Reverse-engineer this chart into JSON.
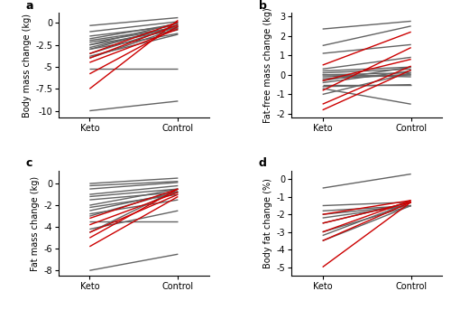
{
  "panel_a": {
    "title": "a",
    "ylabel": "Body mass change (kg)",
    "ylim": [
      -10.8,
      1.2
    ],
    "yticks": [
      0,
      -2.5,
      -5.0,
      -7.5,
      -10.0
    ],
    "lines": [
      {
        "keto": -0.3,
        "control": 0.6,
        "color": "gray"
      },
      {
        "keto": -1.0,
        "control": 0.15,
        "color": "gray"
      },
      {
        "keto": -1.5,
        "control": -0.3,
        "color": "gray"
      },
      {
        "keto": -1.8,
        "control": -0.1,
        "color": "gray"
      },
      {
        "keto": -2.0,
        "control": -0.5,
        "color": "gray"
      },
      {
        "keto": -2.2,
        "control": -0.6,
        "color": "gray"
      },
      {
        "keto": -2.5,
        "control": -0.8,
        "color": "gray"
      },
      {
        "keto": -2.5,
        "control": 0.0,
        "color": "gray"
      },
      {
        "keto": -2.8,
        "control": -0.4,
        "color": "gray"
      },
      {
        "keto": -3.0,
        "control": -0.3,
        "color": "gray"
      },
      {
        "keto": -3.0,
        "control": -1.2,
        "color": "gray"
      },
      {
        "keto": -3.5,
        "control": -0.4,
        "color": "gray"
      },
      {
        "keto": -3.8,
        "control": -1.3,
        "color": "gray"
      },
      {
        "keto": -4.0,
        "control": -0.6,
        "color": "gray"
      },
      {
        "keto": -5.2,
        "control": -5.2,
        "color": "gray"
      },
      {
        "keto": -10.0,
        "control": -8.9,
        "color": "gray"
      },
      {
        "keto": -3.5,
        "control": 0.1,
        "color": "red"
      },
      {
        "keto": -4.0,
        "control": -0.2,
        "color": "red"
      },
      {
        "keto": -4.5,
        "control": -0.7,
        "color": "red"
      },
      {
        "keto": -5.8,
        "control": -0.4,
        "color": "red"
      },
      {
        "keto": -7.5,
        "control": 0.3,
        "color": "red"
      }
    ]
  },
  "panel_b": {
    "title": "b",
    "ylabel": "Fat-free mass change (kg)",
    "ylim": [
      -2.2,
      3.2
    ],
    "yticks": [
      -2,
      -1,
      0,
      1,
      2,
      3
    ],
    "lines": [
      {
        "keto": 2.35,
        "control": 2.75,
        "color": "gray"
      },
      {
        "keto": 1.5,
        "control": 2.5,
        "color": "gray"
      },
      {
        "keto": 1.1,
        "control": 1.55,
        "color": "gray"
      },
      {
        "keto": 0.3,
        "control": 0.9,
        "color": "gray"
      },
      {
        "keto": 0.2,
        "control": 0.4,
        "color": "gray"
      },
      {
        "keto": 0.1,
        "control": 0.3,
        "color": "gray"
      },
      {
        "keto": 0.0,
        "control": 0.1,
        "color": "gray"
      },
      {
        "keto": 0.0,
        "control": -0.1,
        "color": "gray"
      },
      {
        "keto": -0.1,
        "control": 0.0,
        "color": "gray"
      },
      {
        "keto": -0.2,
        "control": 0.0,
        "color": "gray"
      },
      {
        "keto": -0.3,
        "control": 0.4,
        "color": "gray"
      },
      {
        "keto": -0.4,
        "control": 0.2,
        "color": "gray"
      },
      {
        "keto": -0.5,
        "control": -0.5,
        "color": "gray"
      },
      {
        "keto": -0.6,
        "control": -0.5,
        "color": "gray"
      },
      {
        "keto": -0.7,
        "control": -1.5,
        "color": "gray"
      },
      {
        "keto": -1.0,
        "control": 0.1,
        "color": "gray"
      },
      {
        "keto": 0.5,
        "control": 2.2,
        "color": "red"
      },
      {
        "keto": -0.3,
        "control": 0.8,
        "color": "red"
      },
      {
        "keto": -0.8,
        "control": 1.4,
        "color": "red"
      },
      {
        "keto": -1.5,
        "control": 0.45,
        "color": "red"
      },
      {
        "keto": -1.8,
        "control": 0.25,
        "color": "red"
      }
    ]
  },
  "panel_c": {
    "title": "c",
    "ylabel": "Fat mass change (kg)",
    "ylim": [
      -8.5,
      1.2
    ],
    "yticks": [
      0,
      -2,
      -4,
      -6,
      -8
    ],
    "lines": [
      {
        "keto": 0.0,
        "control": 0.5,
        "color": "gray"
      },
      {
        "keto": -0.2,
        "control": 0.2,
        "color": "gray"
      },
      {
        "keto": -0.5,
        "control": 0.1,
        "color": "gray"
      },
      {
        "keto": -1.0,
        "control": -0.2,
        "color": "gray"
      },
      {
        "keto": -1.2,
        "control": -0.5,
        "color": "gray"
      },
      {
        "keto": -1.5,
        "control": -0.8,
        "color": "gray"
      },
      {
        "keto": -2.0,
        "control": -0.5,
        "color": "gray"
      },
      {
        "keto": -2.2,
        "control": -1.0,
        "color": "gray"
      },
      {
        "keto": -2.5,
        "control": -0.8,
        "color": "gray"
      },
      {
        "keto": -2.8,
        "control": -1.5,
        "color": "gray"
      },
      {
        "keto": -3.0,
        "control": -0.7,
        "color": "gray"
      },
      {
        "keto": -3.5,
        "control": -3.5,
        "color": "gray"
      },
      {
        "keto": -4.2,
        "control": -2.5,
        "color": "gray"
      },
      {
        "keto": -4.5,
        "control": -0.5,
        "color": "gray"
      },
      {
        "keto": -8.0,
        "control": -6.5,
        "color": "gray"
      },
      {
        "keto": -3.2,
        "control": -0.5,
        "color": "red"
      },
      {
        "keto": -3.8,
        "control": -0.8,
        "color": "red"
      },
      {
        "keto": -4.5,
        "control": -1.0,
        "color": "red"
      },
      {
        "keto": -5.0,
        "control": -0.5,
        "color": "red"
      },
      {
        "keto": -5.8,
        "control": -1.2,
        "color": "red"
      }
    ]
  },
  "panel_d": {
    "title": "d",
    "ylabel": "Body fat change (%)",
    "ylim": [
      -5.5,
      0.5
    ],
    "yticks": [
      0,
      -1,
      -2,
      -3,
      -4,
      -5
    ],
    "lines": [
      {
        "keto": -0.5,
        "control": 0.3,
        "color": "gray"
      },
      {
        "keto": -1.5,
        "control": -1.3,
        "color": "gray"
      },
      {
        "keto": -1.8,
        "control": -1.5,
        "color": "gray"
      },
      {
        "keto": -2.0,
        "control": -1.5,
        "color": "gray"
      },
      {
        "keto": -2.2,
        "control": -1.5,
        "color": "gray"
      },
      {
        "keto": -2.5,
        "control": -1.3,
        "color": "gray"
      },
      {
        "keto": -3.0,
        "control": -1.5,
        "color": "gray"
      },
      {
        "keto": -3.2,
        "control": -1.3,
        "color": "gray"
      },
      {
        "keto": -3.5,
        "control": -1.5,
        "color": "gray"
      },
      {
        "keto": -2.0,
        "control": -1.2,
        "color": "red"
      },
      {
        "keto": -2.5,
        "control": -1.3,
        "color": "red"
      },
      {
        "keto": -3.0,
        "control": -1.2,
        "color": "red"
      },
      {
        "keto": -3.5,
        "control": -1.3,
        "color": "red"
      },
      {
        "keto": -5.0,
        "control": -1.3,
        "color": "red"
      }
    ]
  },
  "x_positions": [
    0,
    1
  ],
  "x_tick_labels": [
    "Keto",
    "Control"
  ],
  "line_width": 1.0,
  "gray_color": "#636363",
  "red_color": "#cc0000",
  "font_size_label": 7,
  "font_size_tick": 7,
  "font_size_title": 9
}
